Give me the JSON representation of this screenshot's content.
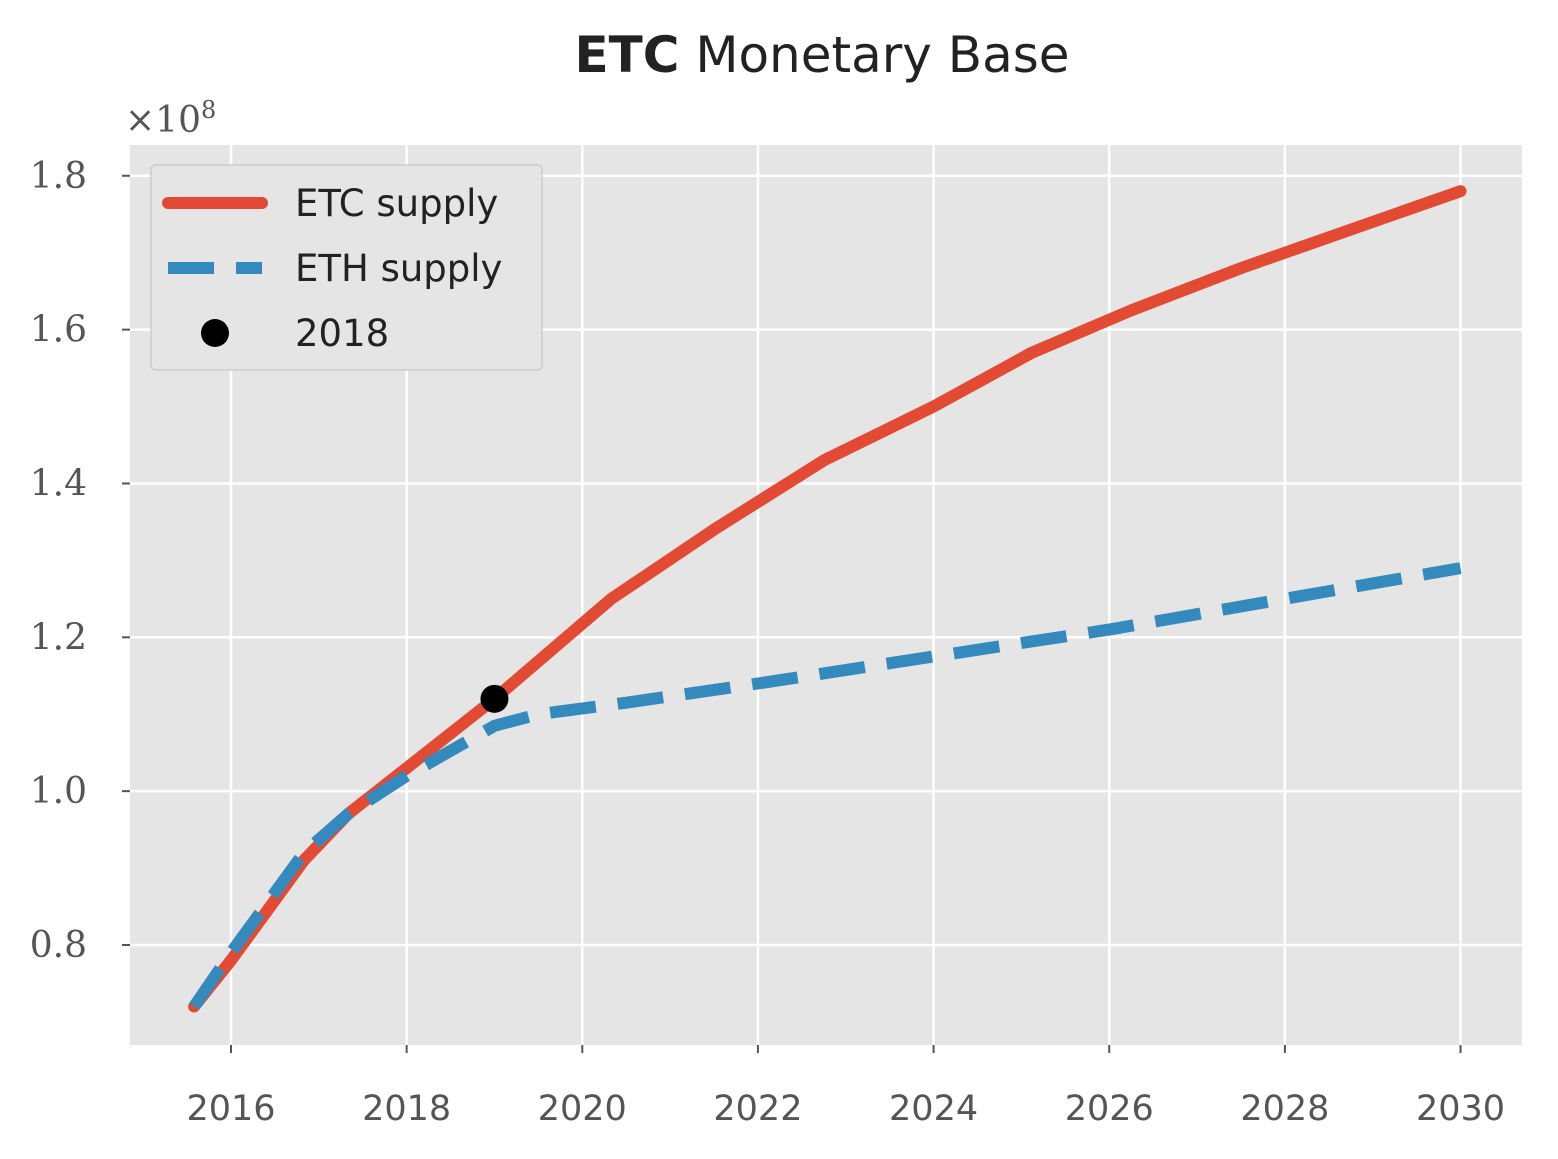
{
  "chart_data": {
    "type": "line",
    "title_bold": "ETC",
    "title_rest": " Monetary Base",
    "xlabel": "",
    "ylabel": "",
    "y_offset_label": "×10",
    "y_offset_exponent": "8",
    "xlim": [
      2014.85,
      2030.7
    ],
    "ylim": [
      0.67,
      1.84
    ],
    "x_ticks": [
      2016,
      2018,
      2020,
      2022,
      2024,
      2026,
      2028,
      2030
    ],
    "y_ticks": [
      0.8,
      1.0,
      1.2,
      1.4,
      1.6,
      1.8
    ],
    "grid": true,
    "legend_position": "upper-left",
    "series": [
      {
        "name": "ETC supply",
        "color": "#E24A33",
        "style": "solid",
        "x": [
          2015.58,
          2016.0,
          2016.83,
          2017.33,
          2018.0,
          2019.0,
          2020.33,
          2021.5,
          2022.75,
          2024.0,
          2025.12,
          2026.25,
          2027.5,
          2028.75,
          2030.0
        ],
        "y": [
          0.72,
          0.78,
          0.91,
          0.97,
          1.03,
          1.12,
          1.25,
          1.34,
          1.43,
          1.5,
          1.57,
          1.625,
          1.68,
          1.73,
          1.78
        ]
      },
      {
        "name": "ETH supply",
        "color": "#348ABD",
        "style": "dashed",
        "x": [
          2015.58,
          2016.0,
          2016.83,
          2017.33,
          2018.0,
          2019.0,
          2019.5,
          2020.5,
          2022.0,
          2024.0,
          2026.0,
          2028.0,
          2030.0
        ],
        "y": [
          0.72,
          0.79,
          0.92,
          0.97,
          1.02,
          1.085,
          1.1,
          1.115,
          1.14,
          1.175,
          1.21,
          1.25,
          1.29
        ]
      },
      {
        "name": "2018",
        "color": "#000000",
        "style": "marker",
        "x": [
          2019.0
        ],
        "y": [
          1.12
        ]
      }
    ]
  }
}
